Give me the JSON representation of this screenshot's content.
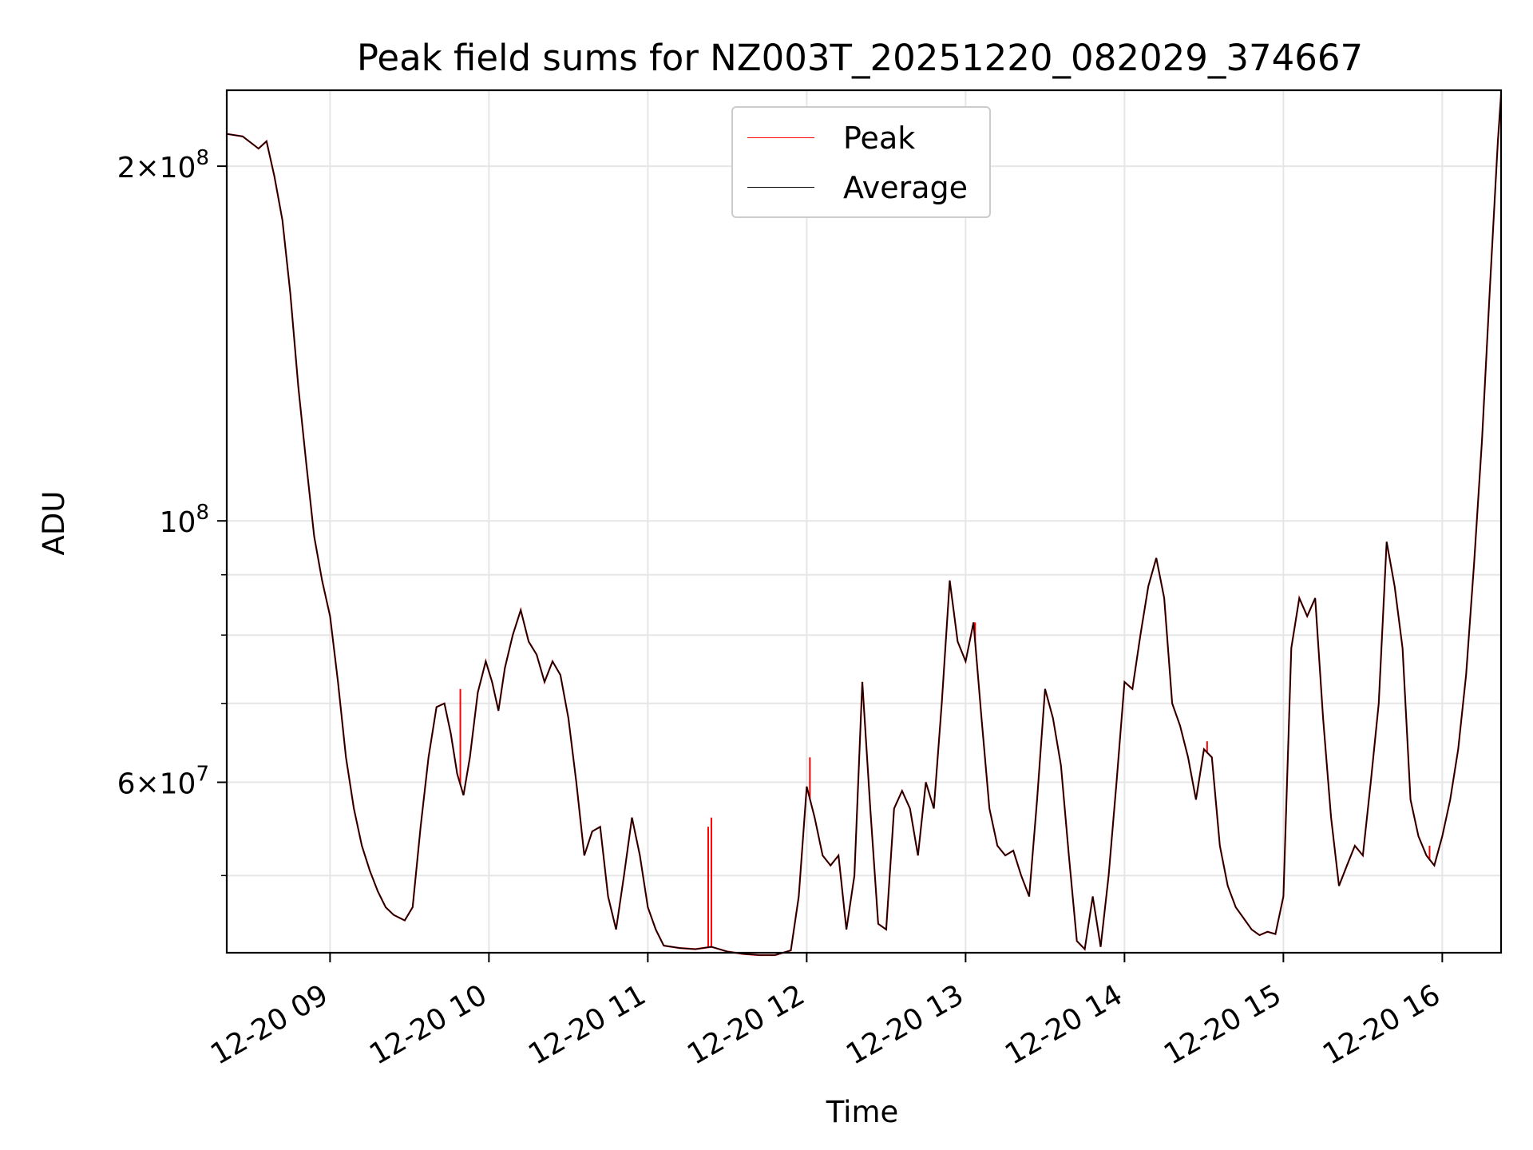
{
  "chart_data": {
    "type": "line",
    "title": "Peak field sums for NZ003T_20251220_082029_374667",
    "xlabel": "Time",
    "ylabel": "ADU",
    "yscale": "log",
    "ylim": [
      43000000,
      232000000
    ],
    "xlim_hours": [
      8.35,
      16.37
    ],
    "x_tick_labels": [
      "12-20 09",
      "12-20 10",
      "12-20 11",
      "12-20 12",
      "12-20 13",
      "12-20 14",
      "12-20 15",
      "12-20 16"
    ],
    "x_tick_hours": [
      9,
      10,
      11,
      12,
      13,
      14,
      15,
      16
    ],
    "y_major_ticks": [
      {
        "value": 60000000,
        "base": "6×10",
        "exp": "7"
      },
      {
        "value": 100000000,
        "base": "10",
        "exp": "8"
      },
      {
        "value": 200000000,
        "base": "2×10",
        "exp": "8"
      }
    ],
    "y_minor_ticks": [
      50000000,
      70000000,
      80000000,
      90000000
    ],
    "grid": true,
    "legend_position": "upper center",
    "series": [
      {
        "name": "Peak",
        "color": "#ff0000"
      },
      {
        "name": "Average",
        "color": "#000000"
      }
    ],
    "average_points": [
      [
        8.35,
        213
      ],
      [
        8.45,
        212
      ],
      [
        8.55,
        207
      ],
      [
        8.6,
        210
      ],
      [
        8.65,
        196
      ],
      [
        8.7,
        180
      ],
      [
        8.75,
        156
      ],
      [
        8.8,
        130
      ],
      [
        8.85,
        112
      ],
      [
        8.9,
        97
      ],
      [
        8.95,
        89
      ],
      [
        9.0,
        83
      ],
      [
        9.05,
        73
      ],
      [
        9.1,
        63
      ],
      [
        9.15,
        57
      ],
      [
        9.2,
        53
      ],
      [
        9.25,
        50.5
      ],
      [
        9.3,
        48.5
      ],
      [
        9.35,
        47
      ],
      [
        9.4,
        46.3
      ],
      [
        9.47,
        45.8
      ],
      [
        9.52,
        47
      ],
      [
        9.57,
        55
      ],
      [
        9.62,
        63
      ],
      [
        9.67,
        69.5
      ],
      [
        9.72,
        70
      ],
      [
        9.76,
        66
      ],
      [
        9.8,
        61
      ],
      [
        9.84,
        58.5
      ],
      [
        9.88,
        63
      ],
      [
        9.93,
        71.5
      ],
      [
        9.98,
        76
      ],
      [
        10.02,
        73
      ],
      [
        10.06,
        69
      ],
      [
        10.1,
        75
      ],
      [
        10.15,
        80
      ],
      [
        10.2,
        84
      ],
      [
        10.25,
        79
      ],
      [
        10.3,
        77
      ],
      [
        10.35,
        73
      ],
      [
        10.4,
        76
      ],
      [
        10.45,
        74
      ],
      [
        10.5,
        68
      ],
      [
        10.55,
        60
      ],
      [
        10.6,
        52
      ],
      [
        10.65,
        54.5
      ],
      [
        10.7,
        55
      ],
      [
        10.75,
        48
      ],
      [
        10.8,
        45
      ],
      [
        10.85,
        50
      ],
      [
        10.9,
        56
      ],
      [
        10.95,
        52
      ],
      [
        11.0,
        47
      ],
      [
        11.05,
        45
      ],
      [
        11.1,
        43.6
      ],
      [
        11.2,
        43.4
      ],
      [
        11.3,
        43.3
      ],
      [
        11.4,
        43.5
      ],
      [
        11.45,
        43.3
      ],
      [
        11.5,
        43.1
      ],
      [
        11.6,
        42.9
      ],
      [
        11.7,
        42.8
      ],
      [
        11.8,
        42.8
      ],
      [
        11.9,
        43.2
      ],
      [
        11.95,
        48
      ],
      [
        12.0,
        59.5
      ],
      [
        12.05,
        56
      ],
      [
        12.1,
        52
      ],
      [
        12.15,
        51
      ],
      [
        12.2,
        52
      ],
      [
        12.25,
        45
      ],
      [
        12.3,
        50
      ],
      [
        12.35,
        73
      ],
      [
        12.4,
        57
      ],
      [
        12.45,
        45.5
      ],
      [
        12.5,
        45
      ],
      [
        12.55,
        57
      ],
      [
        12.6,
        59
      ],
      [
        12.65,
        57
      ],
      [
        12.7,
        52
      ],
      [
        12.75,
        60
      ],
      [
        12.8,
        57
      ],
      [
        12.85,
        70
      ],
      [
        12.9,
        89
      ],
      [
        12.95,
        79
      ],
      [
        13.0,
        76
      ],
      [
        13.05,
        82
      ],
      [
        13.1,
        68
      ],
      [
        13.15,
        57
      ],
      [
        13.2,
        53
      ],
      [
        13.25,
        52
      ],
      [
        13.3,
        52.5
      ],
      [
        13.35,
        50
      ],
      [
        13.4,
        48
      ],
      [
        13.45,
        58
      ],
      [
        13.5,
        72
      ],
      [
        13.55,
        68
      ],
      [
        13.6,
        62
      ],
      [
        13.65,
        52
      ],
      [
        13.7,
        44
      ],
      [
        13.75,
        43.3
      ],
      [
        13.8,
        48
      ],
      [
        13.85,
        43.5
      ],
      [
        13.9,
        50
      ],
      [
        13.95,
        60
      ],
      [
        14.0,
        73
      ],
      [
        14.05,
        72
      ],
      [
        14.1,
        80
      ],
      [
        14.15,
        88
      ],
      [
        14.2,
        93
      ],
      [
        14.25,
        86
      ],
      [
        14.3,
        70
      ],
      [
        14.35,
        67
      ],
      [
        14.4,
        63
      ],
      [
        14.45,
        58
      ],
      [
        14.5,
        64
      ],
      [
        14.55,
        63
      ],
      [
        14.6,
        53
      ],
      [
        14.65,
        49
      ],
      [
        14.7,
        47
      ],
      [
        14.75,
        46
      ],
      [
        14.8,
        45
      ],
      [
        14.85,
        44.5
      ],
      [
        14.9,
        44.8
      ],
      [
        14.95,
        44.6
      ],
      [
        15.0,
        48
      ],
      [
        15.05,
        78
      ],
      [
        15.1,
        86
      ],
      [
        15.15,
        83
      ],
      [
        15.2,
        86
      ],
      [
        15.25,
        68
      ],
      [
        15.3,
        56
      ],
      [
        15.35,
        49
      ],
      [
        15.4,
        51
      ],
      [
        15.45,
        53
      ],
      [
        15.5,
        52
      ],
      [
        15.55,
        60
      ],
      [
        15.6,
        70
      ],
      [
        15.65,
        96
      ],
      [
        15.7,
        88
      ],
      [
        15.75,
        78
      ],
      [
        15.8,
        58
      ],
      [
        15.85,
        54
      ],
      [
        15.9,
        52
      ],
      [
        15.95,
        51
      ],
      [
        16.0,
        54
      ],
      [
        16.05,
        58
      ],
      [
        16.1,
        64
      ],
      [
        16.15,
        74
      ],
      [
        16.2,
        92
      ],
      [
        16.25,
        117
      ],
      [
        16.3,
        158
      ],
      [
        16.35,
        210
      ],
      [
        16.37,
        230
      ]
    ],
    "peak_spikes": [
      [
        11.38,
        55.0
      ],
      [
        11.4,
        56.0
      ],
      [
        12.02,
        63.0
      ],
      [
        9.82,
        72.0
      ],
      [
        13.06,
        82.0
      ],
      [
        15.92,
        53.0
      ],
      [
        14.52,
        65.0
      ]
    ]
  }
}
